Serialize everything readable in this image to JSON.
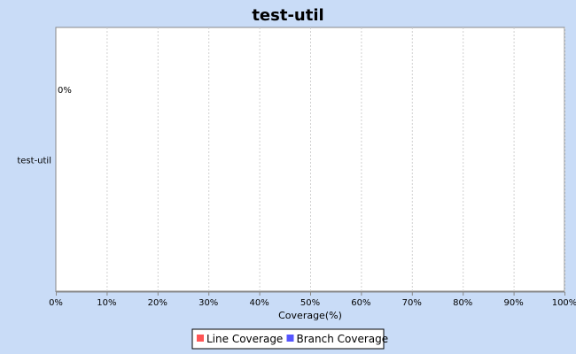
{
  "chart_data": {
    "type": "bar",
    "orientation": "horizontal",
    "title": "test-util",
    "categories": [
      "test-util"
    ],
    "series": [
      {
        "name": "Line Coverage",
        "values": [
          0
        ],
        "color": "#ff5555"
      },
      {
        "name": "Branch Coverage",
        "values": [
          0
        ],
        "color": "#5555ff"
      }
    ],
    "data_labels": [
      "0%"
    ],
    "xlabel": "Coverage(%)",
    "ylabel": "",
    "xlim": [
      0,
      100
    ],
    "ticks": [
      0,
      10,
      20,
      30,
      40,
      50,
      60,
      70,
      80,
      90,
      100
    ],
    "tick_labels": [
      "0%",
      "10%",
      "20%",
      "30%",
      "40%",
      "50%",
      "60%",
      "70%",
      "80%",
      "90%",
      "100%"
    ],
    "grid": true,
    "legend": "bottom-center"
  },
  "colors": {
    "background": "#c9dcf7",
    "plot_background": "#ffffff",
    "grid": "#d0d0d0"
  }
}
